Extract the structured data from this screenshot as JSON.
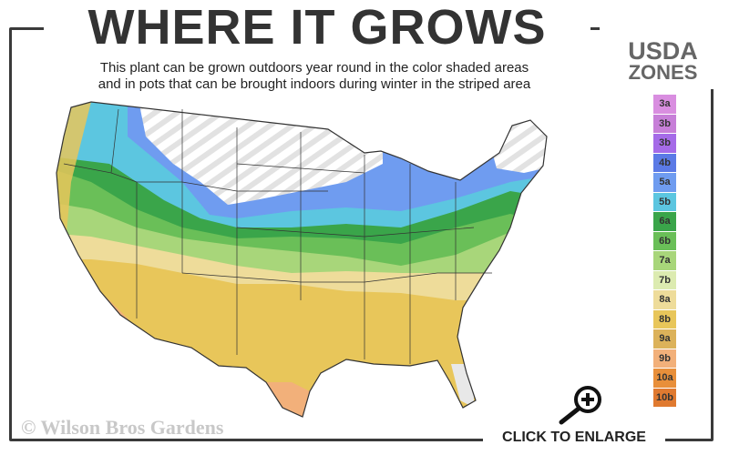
{
  "header": {
    "title": "WHERE IT GROWS",
    "subtitle_line1": "This plant can be grown outdoors year round in the color shaded areas",
    "subtitle_line2": "and in pots that can be brought indoors during winter in the striped area"
  },
  "legend": {
    "title_line1": "USDA",
    "title_line2": "ZONES",
    "zones": [
      {
        "label": "3a",
        "color": "#d98ee0"
      },
      {
        "label": "3b",
        "color": "#c77fd8"
      },
      {
        "label": "3b",
        "color": "#a56be8"
      },
      {
        "label": "4b",
        "color": "#5b7ae6"
      },
      {
        "label": "5a",
        "color": "#6f9cf0"
      },
      {
        "label": "5b",
        "color": "#5cc6e0"
      },
      {
        "label": "6a",
        "color": "#3aa54a"
      },
      {
        "label": "6b",
        "color": "#6abf58"
      },
      {
        "label": "7a",
        "color": "#a8d67a"
      },
      {
        "label": "7b",
        "color": "#dcebb0"
      },
      {
        "label": "8a",
        "color": "#eedc9a"
      },
      {
        "label": "8b",
        "color": "#e8c65a"
      },
      {
        "label": "9a",
        "color": "#dcb25a"
      },
      {
        "label": "9b",
        "color": "#f2b07a"
      },
      {
        "label": "10a",
        "color": "#e88f3a"
      },
      {
        "label": "10b",
        "color": "#e07a30"
      }
    ]
  },
  "footer": {
    "copyright": "© Wilson Bros Gardens",
    "enlarge_label": "CLICK TO ENLARGE",
    "enlarge_icon": "magnifier-plus-icon"
  }
}
